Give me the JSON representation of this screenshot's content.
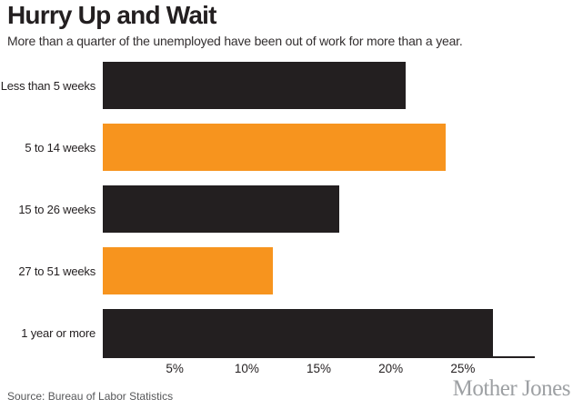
{
  "header": {
    "title": "Hurry Up and Wait",
    "subtitle": "More than a quarter of the unemployed have been out of work for more than a year."
  },
  "chart_data": {
    "type": "bar",
    "orientation": "horizontal",
    "title": "Hurry Up and Wait",
    "subtitle": "More than a quarter of the unemployed have been out of work for more than a year.",
    "categories": [
      "Less than 5 weeks",
      "5 to 14 weeks",
      "15 to 26 weeks",
      "27 to 51 weeks",
      "1 year or more"
    ],
    "values": [
      21.0,
      23.8,
      16.4,
      11.8,
      27.1
    ],
    "unit": "%",
    "xlabel": "",
    "ylabel": "",
    "xlim": [
      0,
      30
    ],
    "x_ticks": [
      {
        "value": 5,
        "label": "5%"
      },
      {
        "value": 10,
        "label": "10%"
      },
      {
        "value": 15,
        "label": "15%"
      },
      {
        "value": 20,
        "label": "20%"
      },
      {
        "value": 25,
        "label": "25%"
      }
    ],
    "bar_colors": [
      "#231f20",
      "#f7941e",
      "#231f20",
      "#f7941e",
      "#231f20"
    ],
    "grid": false,
    "legend": "none",
    "source": "Source: Bureau of Labor Statistics"
  },
  "footer": {
    "source": "Source: Bureau of Labor Statistics",
    "brand": "Mother Jones"
  },
  "colors": {
    "dark_bar": "#231f20",
    "orange_bar": "#f7941e",
    "axis": "#231f20",
    "title_text": "#231f20",
    "source_text": "#565759",
    "brand_gray": "#9da0a3",
    "background": "#ffffff"
  }
}
